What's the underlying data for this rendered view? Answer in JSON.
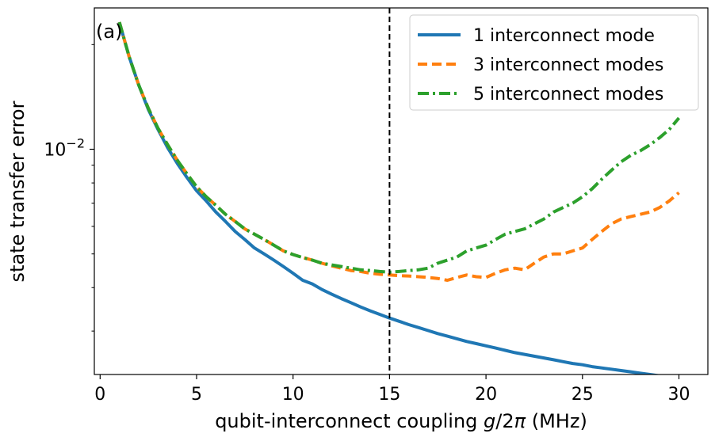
{
  "chart_data": {
    "type": "line",
    "panel_label": "(a)",
    "xlabel": "qubit-interconnect coupling g/2π (MHz)",
    "xlabel_parts": {
      "pre": "qubit-interconnect coupling ",
      "g": "g",
      "mid": "/2",
      "pi": "π",
      "post": " (MHz)"
    },
    "ylabel": "state transfer error",
    "y_scale": "log",
    "xlim": [
      -0.3,
      31.5
    ],
    "ylim": [
      0.00225,
      0.0255
    ],
    "x_ticks": [
      0,
      5,
      10,
      15,
      20,
      25,
      30
    ],
    "y_major_tick": {
      "base": "10",
      "exponent": "−2",
      "value": 0.01
    },
    "y_minor_ticks": [
      0.003,
      0.004,
      0.005,
      0.006,
      0.007,
      0.008,
      0.009,
      0.02
    ],
    "vline": {
      "x": 15,
      "style": "dashed",
      "color": "#000000"
    },
    "legend_position": "top-right",
    "grid": false,
    "x": [
      1,
      1.5,
      2,
      2.5,
      3,
      3.5,
      4,
      4.5,
      5,
      5.5,
      6,
      6.5,
      7,
      7.5,
      8,
      8.5,
      9,
      9.5,
      10,
      10.5,
      11,
      11.5,
      12,
      12.5,
      13,
      13.5,
      14,
      14.5,
      15,
      15.5,
      16,
      16.5,
      17,
      17.5,
      18,
      18.5,
      19,
      19.5,
      20,
      20.5,
      21,
      21.5,
      22,
      22.5,
      23,
      23.5,
      24,
      24.5,
      25,
      25.5,
      26,
      26.5,
      27,
      27.5,
      28,
      28.5,
      29,
      29.5,
      30
    ],
    "series": [
      {
        "name": "1 interconnect mode",
        "color": "#1f77b4",
        "dash": "solid",
        "values": [
          0.0232,
          0.0185,
          0.0153,
          0.013,
          0.0114,
          0.0101,
          0.0091,
          0.0083,
          0.0076,
          0.0071,
          0.0066,
          0.0062,
          0.0058,
          0.0055,
          0.0052,
          0.005,
          0.0048,
          0.0046,
          0.0044,
          0.0042,
          0.0041,
          0.00395,
          0.00383,
          0.00372,
          0.00362,
          0.00352,
          0.00343,
          0.00335,
          0.00327,
          0.0032,
          0.00313,
          0.00307,
          0.00301,
          0.00295,
          0.0029,
          0.00285,
          0.0028,
          0.00276,
          0.00272,
          0.00268,
          0.00264,
          0.0026,
          0.00257,
          0.00254,
          0.00251,
          0.00248,
          0.00245,
          0.00242,
          0.0024,
          0.00237,
          0.00235,
          0.00233,
          0.00231,
          0.00229,
          0.00227,
          0.00225,
          0.00223,
          0.00221,
          0.00219
        ]
      },
      {
        "name": "3 interconnect modes",
        "color": "#ff7f0e",
        "dash": "dashed",
        "values": [
          0.0232,
          0.0185,
          0.0153,
          0.0131,
          0.0115,
          0.0103,
          0.0093,
          0.0085,
          0.0078,
          0.0073,
          0.0069,
          0.0065,
          0.0062,
          0.0059,
          0.0057,
          0.0055,
          0.0053,
          0.0051,
          0.00498,
          0.00488,
          0.0048,
          0.0047,
          0.00462,
          0.00455,
          0.00448,
          0.00445,
          0.0044,
          0.00437,
          0.00435,
          0.00433,
          0.00432,
          0.0043,
          0.00428,
          0.00425,
          0.0042,
          0.00428,
          0.00435,
          0.0043,
          0.00428,
          0.0044,
          0.0045,
          0.00455,
          0.0045,
          0.0047,
          0.0049,
          0.005,
          0.005,
          0.0051,
          0.0052,
          0.0055,
          0.0058,
          0.0061,
          0.0063,
          0.0064,
          0.0065,
          0.0066,
          0.0068,
          0.0071,
          0.0075
        ]
      },
      {
        "name": "5 interconnect modes",
        "color": "#2ca02c",
        "dash": "dashdot",
        "values": [
          0.0232,
          0.0185,
          0.0153,
          0.0131,
          0.0115,
          0.0103,
          0.0093,
          0.0085,
          0.0078,
          0.0073,
          0.0069,
          0.0065,
          0.0062,
          0.0059,
          0.0057,
          0.0055,
          0.0053,
          0.0051,
          0.00498,
          0.00488,
          0.0048,
          0.0047,
          0.00465,
          0.0046,
          0.00455,
          0.0045,
          0.00448,
          0.00445,
          0.00443,
          0.00445,
          0.00448,
          0.0045,
          0.00455,
          0.0047,
          0.0048,
          0.0049,
          0.0051,
          0.0052,
          0.0053,
          0.0055,
          0.0057,
          0.0058,
          0.0059,
          0.0061,
          0.0063,
          0.0066,
          0.0068,
          0.007,
          0.0073,
          0.0077,
          0.0082,
          0.0087,
          0.0092,
          0.0096,
          0.0099,
          0.0103,
          0.0108,
          0.0114,
          0.0123
        ]
      }
    ]
  }
}
